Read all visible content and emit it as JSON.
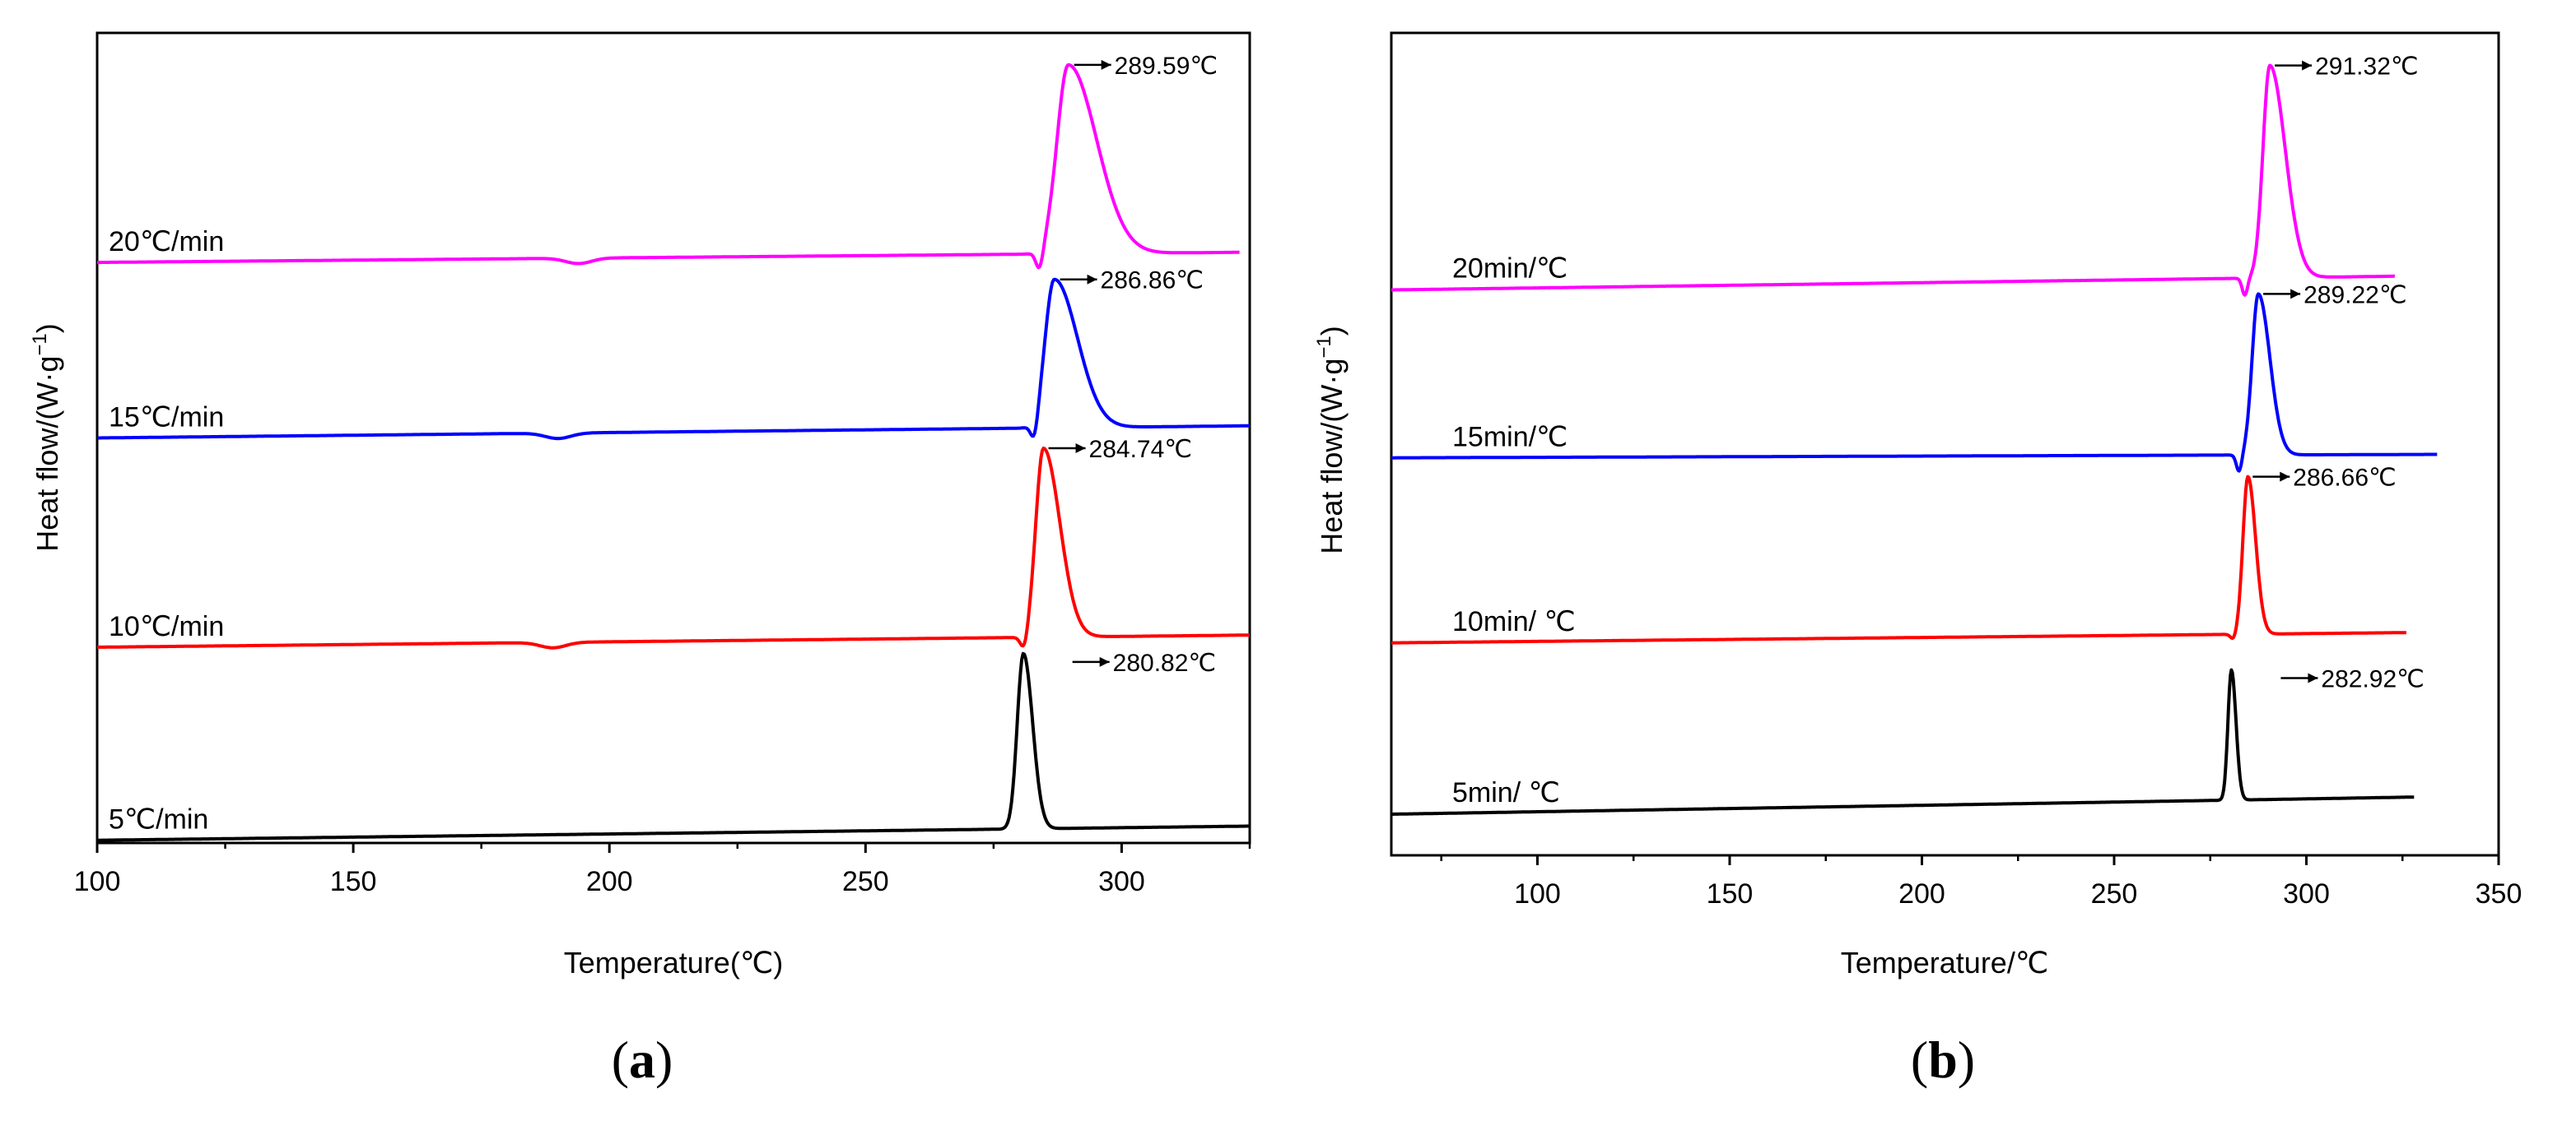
{
  "chart_data": [
    {
      "id": "a",
      "type": "line",
      "caption_letter": "a",
      "xlabel": "Temperature(℃)",
      "ylabel": "Heat flow/(W·g",
      "ylabel_sup": "−1",
      "ylabel_close": ")",
      "xlim": [
        100,
        325
      ],
      "xticks": [
        100,
        150,
        200,
        250,
        300
      ],
      "yticks": [],
      "series": [
        {
          "name": "5℃/min",
          "color": "#000000",
          "baseline_start": 0.4,
          "baseline_end": 2.5,
          "dip_temp": 190,
          "dip": 0.0,
          "dip_width": 3,
          "pre_dip_temp": 278,
          "pre_dip": 0.0,
          "peak_temp": 280.82,
          "peak_height": 26.0,
          "peak_sigma_left": 1.2,
          "peak_sigma_right": 1.8,
          "x_end": 325,
          "peak_label": "280.82℃"
        },
        {
          "name": "10℃/min",
          "color": "#ff0000",
          "baseline_start": 29.0,
          "baseline_end": 30.8,
          "dip_temp": 189,
          "dip": 0.8,
          "dip_width": 2.5,
          "pre_dip_temp": 281,
          "pre_dip": 2.2,
          "peak_temp": 284.74,
          "peak_height": 28.0,
          "peak_sigma_left": 1.5,
          "peak_sigma_right": 3.2,
          "x_end": 325,
          "peak_label": "284.74℃"
        },
        {
          "name": "15℃/min",
          "color": "#0000ff",
          "baseline_start": 60.0,
          "baseline_end": 61.8,
          "dip_temp": 190,
          "dip": 0.8,
          "dip_width": 2.5,
          "pre_dip_temp": 283,
          "pre_dip": 3.0,
          "peak_temp": 286.86,
          "peak_height": 22.0,
          "peak_sigma_left": 1.8,
          "peak_sigma_right": 4.5,
          "x_end": 325,
          "peak_label": "286.86℃"
        },
        {
          "name": "20℃/min",
          "color": "#ff00ff",
          "baseline_start": 86.0,
          "baseline_end": 87.5,
          "dip_temp": 194,
          "dip": 0.8,
          "dip_width": 2.5,
          "pre_dip_temp": 284,
          "pre_dip": 3.0,
          "peak_temp": 289.59,
          "peak_height": 28.0,
          "peak_sigma_left": 2.2,
          "peak_sigma_right": 5.5,
          "x_end": 323,
          "peak_label": "289.59℃"
        }
      ]
    },
    {
      "id": "b",
      "type": "line",
      "caption_letter": "b",
      "xlabel": "Temperature/℃",
      "ylabel": "Heat flow/(W·g",
      "ylabel_sup": "−1",
      "ylabel_close": ")",
      "xlim": [
        62,
        350
      ],
      "xticks": [
        100,
        150,
        200,
        250,
        300,
        350
      ],
      "yticks": [],
      "series": [
        {
          "name": "5min/ ℃",
          "color": "#000000",
          "baseline_start": 6.0,
          "baseline_end": 8.5,
          "dip_temp": 190,
          "dip": 0.0,
          "dip_width": 3,
          "pre_dip_temp": 278,
          "pre_dip": 0.0,
          "peak_temp": 280.5,
          "peak_height": 19.0,
          "peak_sigma_left": 0.9,
          "peak_sigma_right": 1.2,
          "x_end": 328,
          "peak_label": "282.92℃"
        },
        {
          "name": "10min/ ℃",
          "color": "#ff0000",
          "baseline_start": 31.0,
          "baseline_end": 32.5,
          "dip_temp": 190,
          "dip": 0.0,
          "dip_width": 3,
          "pre_dip_temp": 281,
          "pre_dip": 0.8,
          "peak_temp": 284.8,
          "peak_height": 23.0,
          "peak_sigma_left": 1.3,
          "peak_sigma_right": 2.0,
          "x_end": 326,
          "peak_label": "286.66℃"
        },
        {
          "name": "15min/℃",
          "color": "#0000ff",
          "baseline_start": 58.0,
          "baseline_end": 58.5,
          "dip_temp": 190,
          "dip": 0.0,
          "dip_width": 3,
          "pre_dip_temp": 282.5,
          "pre_dip": 2.5,
          "peak_temp": 287.5,
          "peak_height": 23.5,
          "peak_sigma_left": 1.6,
          "peak_sigma_right": 3.0,
          "x_end": 334,
          "peak_label": "289.22℃"
        },
        {
          "name": "20min/℃",
          "color": "#ff00ff",
          "baseline_start": 82.5,
          "baseline_end": 84.5,
          "dip_temp": 190,
          "dip": 0.0,
          "dip_width": 3,
          "pre_dip_temp": 284,
          "pre_dip": 2.5,
          "peak_temp": 290.5,
          "peak_height": 31.0,
          "peak_sigma_left": 1.8,
          "peak_sigma_right": 4.0,
          "x_end": 323,
          "peak_label": "291.32℃"
        }
      ]
    }
  ]
}
